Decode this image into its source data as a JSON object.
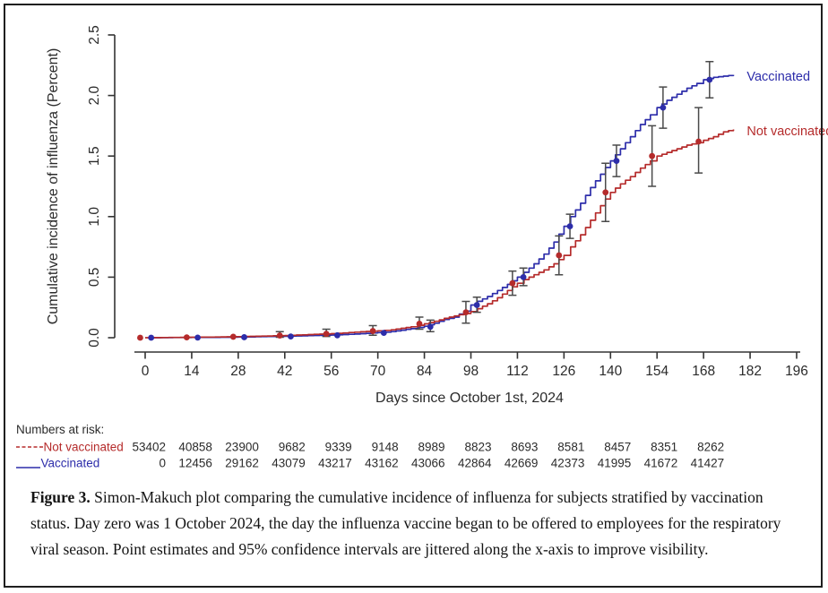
{
  "figure": {
    "caption_label": "Figure 3.",
    "caption_text": " Simon-Makuch plot comparing the cumulative incidence of influenza for subjects stratified by vaccination status. Day zero was 1 October 2024, the day the influenza vaccine began to be offered to employees for the respiratory viral season. Point estimates and 95% confidence intervals are jittered along the x-axis to improve visibility."
  },
  "chart_data": {
    "type": "line",
    "subtype": "step-cumulative-incidence",
    "title": "",
    "xlabel": "Days since October 1st, 2024",
    "ylabel": "Cumulative incidence of influenza (Percent)",
    "xlim": [
      0,
      196
    ],
    "ylim": [
      0,
      2.5
    ],
    "x_ticks": [
      0,
      14,
      28,
      42,
      56,
      70,
      84,
      98,
      112,
      126,
      140,
      154,
      168,
      182,
      196
    ],
    "y_tick_labels": [
      "0.0",
      "0.5",
      "1.0",
      "1.5",
      "2.0",
      "2.5"
    ],
    "y_ticks": [
      0,
      0.5,
      1.0,
      1.5,
      2.0,
      2.5
    ],
    "grid": false,
    "legend_position": "right-of-curve-ends",
    "colors": {
      "axis": "#333333",
      "error_bar": "#4a4a4a"
    },
    "series": [
      {
        "name": "Vaccinated",
        "color": "#2d2daa",
        "jitter": 1.8,
        "label_pos": {
          "day": 181,
          "value": 2.15
        },
        "curve": [
          [
            1,
            0
          ],
          [
            14,
            0.002
          ],
          [
            21,
            0.003
          ],
          [
            28,
            0.005
          ],
          [
            35,
            0.009
          ],
          [
            42,
            0.012
          ],
          [
            49,
            0.017
          ],
          [
            56,
            0.022
          ],
          [
            63,
            0.03
          ],
          [
            70,
            0.042
          ],
          [
            74,
            0.05
          ],
          [
            77,
            0.062
          ],
          [
            80,
            0.075
          ],
          [
            84,
            0.095
          ],
          [
            87,
            0.12
          ],
          [
            90,
            0.15
          ],
          [
            93,
            0.17
          ],
          [
            96,
            0.22
          ],
          [
            98,
            0.27
          ],
          [
            100,
            0.3
          ],
          [
            103,
            0.34
          ],
          [
            106,
            0.39
          ],
          [
            109,
            0.44
          ],
          [
            112,
            0.5
          ],
          [
            114,
            0.54
          ],
          [
            117,
            0.61
          ],
          [
            120,
            0.69
          ],
          [
            123,
            0.79
          ],
          [
            126,
            0.92
          ],
          [
            128,
            1.0
          ],
          [
            131,
            1.11
          ],
          [
            134,
            1.24
          ],
          [
            137,
            1.35
          ],
          [
            140,
            1.46
          ],
          [
            143,
            1.56
          ],
          [
            146,
            1.66
          ],
          [
            149,
            1.76
          ],
          [
            152,
            1.84
          ],
          [
            154,
            1.9
          ],
          [
            157,
            1.96
          ],
          [
            160,
            2.01
          ],
          [
            163,
            2.06
          ],
          [
            166,
            2.1
          ],
          [
            168,
            2.13
          ],
          [
            171,
            2.15
          ],
          [
            174,
            2.16
          ],
          [
            177,
            2.17
          ]
        ],
        "points": [
          {
            "day": 0,
            "est": 0,
            "lo": null,
            "hi": null
          },
          {
            "day": 14,
            "est": 0.001,
            "lo": null,
            "hi": null
          },
          {
            "day": 28,
            "est": 0.004,
            "lo": null,
            "hi": null
          },
          {
            "day": 42,
            "est": 0.01,
            "lo": null,
            "hi": null
          },
          {
            "day": 56,
            "est": 0.02,
            "lo": null,
            "hi": null
          },
          {
            "day": 70,
            "est": 0.04,
            "lo": null,
            "hi": null
          },
          {
            "day": 84,
            "est": 0.09,
            "lo": 0.05,
            "hi": 0.145
          },
          {
            "day": 98,
            "est": 0.27,
            "lo": 0.21,
            "hi": 0.335
          },
          {
            "day": 112,
            "est": 0.5,
            "lo": 0.43,
            "hi": 0.575
          },
          {
            "day": 126,
            "est": 0.92,
            "lo": 0.82,
            "hi": 1.02
          },
          {
            "day": 140,
            "est": 1.46,
            "lo": 1.33,
            "hi": 1.59
          },
          {
            "day": 154,
            "est": 1.9,
            "lo": 1.73,
            "hi": 2.07
          },
          {
            "day": 168,
            "est": 2.13,
            "lo": 1.98,
            "hi": 2.28
          }
        ]
      },
      {
        "name": "Not vaccinated",
        "color": "#b52b2b",
        "jitter": -1.5,
        "label_pos": {
          "day": 181,
          "value": 1.7
        },
        "curve": [
          [
            0,
            0
          ],
          [
            7,
            0.002
          ],
          [
            14,
            0.004
          ],
          [
            21,
            0.006
          ],
          [
            28,
            0.009
          ],
          [
            35,
            0.013
          ],
          [
            42,
            0.018
          ],
          [
            49,
            0.026
          ],
          [
            56,
            0.033
          ],
          [
            63,
            0.046
          ],
          [
            70,
            0.057
          ],
          [
            74,
            0.065
          ],
          [
            77,
            0.078
          ],
          [
            80,
            0.09
          ],
          [
            84,
            0.115
          ],
          [
            87,
            0.135
          ],
          [
            90,
            0.16
          ],
          [
            93,
            0.18
          ],
          [
            96,
            0.2
          ],
          [
            98,
            0.215
          ],
          [
            100,
            0.24
          ],
          [
            103,
            0.28
          ],
          [
            106,
            0.33
          ],
          [
            109,
            0.39
          ],
          [
            112,
            0.45
          ],
          [
            114,
            0.48
          ],
          [
            117,
            0.52
          ],
          [
            120,
            0.56
          ],
          [
            123,
            0.61
          ],
          [
            126,
            0.68
          ],
          [
            128,
            0.75
          ],
          [
            131,
            0.85
          ],
          [
            134,
            0.97
          ],
          [
            137,
            1.09
          ],
          [
            140,
            1.2
          ],
          [
            143,
            1.27
          ],
          [
            146,
            1.33
          ],
          [
            149,
            1.4
          ],
          [
            152,
            1.46
          ],
          [
            154,
            1.5
          ],
          [
            157,
            1.53
          ],
          [
            160,
            1.56
          ],
          [
            163,
            1.59
          ],
          [
            166,
            1.61
          ],
          [
            168,
            1.63
          ],
          [
            171,
            1.66
          ],
          [
            174,
            1.7
          ],
          [
            177,
            1.72
          ]
        ],
        "points": [
          {
            "day": 0,
            "est": 0,
            "lo": null,
            "hi": null
          },
          {
            "day": 14,
            "est": 0.003,
            "lo": null,
            "hi": null
          },
          {
            "day": 28,
            "est": 0.008,
            "lo": null,
            "hi": null
          },
          {
            "day": 42,
            "est": 0.018,
            "lo": 0.004,
            "hi": 0.05
          },
          {
            "day": 56,
            "est": 0.032,
            "lo": 0.01,
            "hi": 0.07
          },
          {
            "day": 70,
            "est": 0.055,
            "lo": 0.02,
            "hi": 0.1
          },
          {
            "day": 84,
            "est": 0.115,
            "lo": 0.07,
            "hi": 0.17
          },
          {
            "day": 98,
            "est": 0.21,
            "lo": 0.12,
            "hi": 0.3
          },
          {
            "day": 112,
            "est": 0.45,
            "lo": 0.35,
            "hi": 0.55
          },
          {
            "day": 126,
            "est": 0.68,
            "lo": 0.52,
            "hi": 0.84
          },
          {
            "day": 140,
            "est": 1.2,
            "lo": 0.96,
            "hi": 1.44
          },
          {
            "day": 154,
            "est": 1.5,
            "lo": 1.25,
            "hi": 1.75
          },
          {
            "day": 168,
            "est": 1.62,
            "lo": 1.36,
            "hi": 1.9
          }
        ]
      }
    ]
  },
  "risk_table": {
    "title": "Numbers at risk:",
    "days": [
      0,
      14,
      28,
      42,
      56,
      70,
      84,
      98,
      112,
      126,
      140,
      154,
      168
    ],
    "rows": [
      {
        "label": "Not vaccinated",
        "color": "#b52b2b",
        "line_style": "dashed",
        "values": [
          "53402",
          "40858",
          "23900",
          "9682",
          "9339",
          "9148",
          "8989",
          "8823",
          "8693",
          "8581",
          "8457",
          "8351",
          "8262"
        ]
      },
      {
        "label": "Vaccinated",
        "color": "#2d2daa",
        "line_style": "solid",
        "values": [
          "0",
          "12456",
          "29162",
          "43079",
          "43217",
          "43162",
          "43066",
          "42864",
          "42669",
          "42373",
          "41995",
          "41672",
          "41427"
        ]
      }
    ]
  }
}
